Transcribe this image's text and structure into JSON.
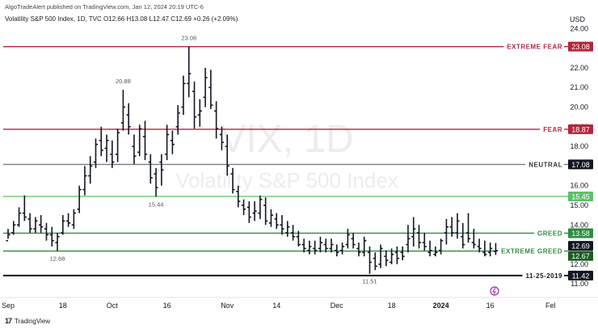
{
  "header": {
    "published": "AlgoTradeAlert published on TradingView.com, Jan 12, 2024 20:19 UTC-6",
    "series": "Volatility S&P 500 Index, 1D, TVC",
    "ohlc": "O12.66  H13.08  L12.47  C12.69  +0.26 (+2.09%)"
  },
  "footer": {
    "brand": "TradingView",
    "logo": "tradingview-logo-icon"
  },
  "colors": {
    "fear": "#b2263c",
    "greed": "#2e8b3f",
    "greed_light": "#7dcc7d",
    "neutral": "#787b86",
    "bars": "#131722",
    "accent": "#9c27b0"
  },
  "chart_data": {
    "type": "ohlc",
    "title": "Volatility S&P 500 Index, 1D, TVC",
    "watermark": {
      "symbol": "VIX, 1D",
      "name": "Volatility S&P 500 Index"
    },
    "currency": "USD",
    "ylim": [
      10.8,
      24.3
    ],
    "yticks": [
      "24.00",
      "23.00",
      "22.00",
      "21.00",
      "20.00",
      "19.00",
      "18.00",
      "17.00",
      "16.00",
      "15.00",
      "14.00",
      "13.00",
      "12.00",
      "11.00"
    ],
    "xlim": [
      0,
      92
    ],
    "xticks": [
      {
        "label": "Sep",
        "i": 0
      },
      {
        "label": "18",
        "i": 10
      },
      {
        "label": "Oct",
        "i": 19
      },
      {
        "label": "16",
        "i": 29
      },
      {
        "label": "Nov",
        "i": 40
      },
      {
        "label": "14",
        "i": 49
      },
      {
        "label": "Dec",
        "i": 60
      },
      {
        "label": "18",
        "i": 70
      },
      {
        "label": "2024",
        "i": 79
      },
      {
        "label": "16",
        "i": 88
      },
      {
        "label": "Fel",
        "i": 99
      }
    ],
    "levels": [
      {
        "name": "EXTREME FEAR",
        "value": 23.08,
        "tag": "23.08",
        "role": "fear"
      },
      {
        "name": "FEAR",
        "value": 18.87,
        "tag": "18.87",
        "role": "fear"
      },
      {
        "name": "NEUTRAL",
        "value": 17.08,
        "tag": "17.08",
        "role": "neutral"
      },
      {
        "name": "",
        "value": 15.45,
        "tag": "15.45",
        "role": "greed_light"
      },
      {
        "name": "GREED",
        "value": 13.58,
        "tag": "13.58",
        "role": "greed"
      },
      {
        "name": "EXTREME GREED",
        "value": 12.67,
        "tag": "12.67",
        "role": "greed"
      },
      {
        "name": "11-25-2019",
        "value": 11.42,
        "tag": "11.42",
        "role": "bars"
      }
    ],
    "last_price": {
      "value": 12.69,
      "tag": "12.69"
    },
    "annotations": [
      {
        "text": "23.08",
        "i": 33,
        "value": 23.08,
        "pos": "above"
      },
      {
        "text": "20.88",
        "i": 21,
        "value": 20.88,
        "pos": "above"
      },
      {
        "text": "15.44",
        "i": 27,
        "value": 15.44,
        "pos": "below"
      },
      {
        "text": "12.68",
        "i": 9,
        "value": 12.68,
        "pos": "below"
      },
      {
        "text": "11.51",
        "i": 66,
        "value": 11.51,
        "pos": "below"
      }
    ],
    "bars": [
      [
        0,
        13.2,
        13.8,
        13.3,
        13.5
      ],
      [
        1,
        13.6,
        14.2,
        13.5,
        14.0
      ],
      [
        2,
        14.0,
        14.9,
        13.9,
        14.6
      ],
      [
        3,
        14.6,
        15.5,
        14.2,
        14.4
      ],
      [
        4,
        14.3,
        14.6,
        13.6,
        13.8
      ],
      [
        5,
        13.8,
        14.4,
        13.6,
        14.2
      ],
      [
        6,
        14.0,
        14.5,
        13.6,
        13.9
      ],
      [
        7,
        13.8,
        14.1,
        13.2,
        13.5
      ],
      [
        8,
        13.5,
        13.9,
        12.9,
        13.2
      ],
      [
        9,
        13.1,
        13.6,
        12.68,
        13.4
      ],
      [
        10,
        13.6,
        14.5,
        13.5,
        14.2
      ],
      [
        11,
        14.2,
        14.6,
        13.9,
        14.1
      ],
      [
        12,
        14.0,
        14.8,
        13.8,
        14.6
      ],
      [
        13,
        14.8,
        16.0,
        14.6,
        15.8
      ],
      [
        14,
        15.8,
        17.0,
        15.5,
        16.5
      ],
      [
        15,
        16.5,
        17.5,
        16.1,
        17.0
      ],
      [
        16,
        17.2,
        18.4,
        16.9,
        18.1
      ],
      [
        17,
        18.3,
        19.0,
        17.5,
        17.8
      ],
      [
        18,
        17.9,
        18.6,
        17.2,
        18.3
      ],
      [
        19,
        17.6,
        18.3,
        16.9,
        17.2
      ],
      [
        20,
        17.6,
        18.9,
        17.2,
        18.7
      ],
      [
        21,
        19.2,
        20.88,
        18.8,
        20.0
      ],
      [
        22,
        19.6,
        20.2,
        18.6,
        19.0
      ],
      [
        23,
        18.0,
        18.6,
        17.1,
        17.5
      ],
      [
        24,
        17.7,
        19.1,
        17.5,
        18.9
      ],
      [
        25,
        18.5,
        19.3,
        17.3,
        17.6
      ],
      [
        26,
        17.2,
        17.6,
        16.1,
        16.4
      ],
      [
        27,
        16.6,
        16.9,
        15.44,
        15.9
      ],
      [
        28,
        17.2,
        17.6,
        16.0,
        16.8
      ],
      [
        29,
        17.6,
        19.1,
        17.3,
        18.6
      ],
      [
        30,
        18.3,
        18.8,
        17.6,
        18.1
      ],
      [
        31,
        19.0,
        20.1,
        18.6,
        19.7
      ],
      [
        32,
        20.0,
        21.6,
        19.6,
        21.2
      ],
      [
        33,
        21.2,
        23.08,
        20.5,
        21.7
      ],
      [
        34,
        20.8,
        21.3,
        18.9,
        19.5
      ],
      [
        35,
        19.6,
        20.4,
        19.0,
        19.8
      ],
      [
        36,
        20.5,
        22.0,
        20.0,
        21.5
      ],
      [
        37,
        21.0,
        21.9,
        19.9,
        20.1
      ],
      [
        38,
        19.8,
        20.3,
        18.4,
        18.9
      ],
      [
        39,
        18.6,
        19.0,
        17.8,
        18.2
      ],
      [
        40,
        18.0,
        18.6,
        16.5,
        17.0
      ],
      [
        41,
        16.6,
        16.9,
        15.6,
        15.8
      ],
      [
        42,
        15.7,
        16.0,
        14.9,
        15.2
      ],
      [
        43,
        15.0,
        15.3,
        14.5,
        14.8
      ],
      [
        44,
        14.9,
        15.2,
        14.1,
        14.4
      ],
      [
        45,
        14.6,
        15.2,
        14.2,
        14.7
      ],
      [
        46,
        14.6,
        15.5,
        14.3,
        15.3
      ],
      [
        47,
        15.0,
        15.4,
        14.0,
        14.2
      ],
      [
        48,
        14.1,
        14.8,
        13.9,
        14.5
      ],
      [
        49,
        14.3,
        14.6,
        13.8,
        14.0
      ],
      [
        50,
        14.0,
        14.5,
        13.5,
        13.8
      ],
      [
        51,
        13.6,
        14.2,
        13.4,
        13.9
      ],
      [
        52,
        13.6,
        14.0,
        13.2,
        13.4
      ],
      [
        53,
        13.4,
        13.7,
        12.9,
        13.0
      ],
      [
        54,
        13.0,
        13.3,
        12.6,
        12.8
      ],
      [
        55,
        12.7,
        13.2,
        12.5,
        12.9
      ],
      [
        56,
        12.8,
        13.2,
        12.5,
        12.7
      ],
      [
        57,
        12.8,
        13.4,
        12.6,
        13.1
      ],
      [
        58,
        13.0,
        13.3,
        12.6,
        12.8
      ],
      [
        59,
        12.8,
        13.3,
        12.6,
        13.0
      ],
      [
        60,
        12.7,
        13.0,
        12.4,
        12.6
      ],
      [
        61,
        12.7,
        13.1,
        12.5,
        12.9
      ],
      [
        62,
        13.0,
        13.8,
        12.8,
        13.5
      ],
      [
        63,
        13.3,
        13.6,
        12.8,
        13.0
      ],
      [
        64,
        12.8,
        13.1,
        12.4,
        12.6
      ],
      [
        65,
        12.6,
        13.4,
        12.4,
        13.2
      ],
      [
        66,
        12.6,
        12.9,
        11.51,
        12.1
      ],
      [
        67,
        12.3,
        12.6,
        11.7,
        11.9
      ],
      [
        68,
        12.0,
        13.0,
        11.8,
        12.8
      ],
      [
        69,
        12.4,
        12.7,
        11.9,
        12.2
      ],
      [
        70,
        12.1,
        12.8,
        12.0,
        12.5
      ],
      [
        71,
        12.6,
        12.9,
        12.0,
        12.3
      ],
      [
        72,
        12.6,
        12.9,
        12.2,
        12.4
      ],
      [
        73,
        13.0,
        14.0,
        12.6,
        13.3
      ],
      [
        74,
        13.4,
        14.4,
        12.9,
        13.8
      ],
      [
        75,
        13.6,
        14.0,
        12.8,
        13.1
      ],
      [
        76,
        13.1,
        13.6,
        12.7,
        12.9
      ],
      [
        77,
        12.6,
        13.2,
        12.4,
        12.7
      ],
      [
        78,
        12.5,
        12.9,
        12.4,
        12.6
      ],
      [
        79,
        12.7,
        13.3,
        12.5,
        13.2
      ],
      [
        80,
        13.6,
        14.3,
        13.0,
        13.9
      ],
      [
        81,
        13.9,
        14.4,
        13.4,
        13.6
      ],
      [
        82,
        13.6,
        14.6,
        13.3,
        14.2
      ],
      [
        83,
        13.4,
        14.1,
        12.8,
        13.0
      ],
      [
        84,
        13.6,
        14.6,
        13.1,
        13.3
      ],
      [
        85,
        13.1,
        13.8,
        12.8,
        13.0
      ],
      [
        86,
        12.9,
        13.3,
        12.6,
        12.8
      ],
      [
        87,
        12.6,
        13.2,
        12.4,
        12.5
      ],
      [
        88,
        12.6,
        13.1,
        12.4,
        12.8
      ],
      [
        89,
        12.66,
        13.08,
        12.47,
        12.69
      ]
    ]
  }
}
